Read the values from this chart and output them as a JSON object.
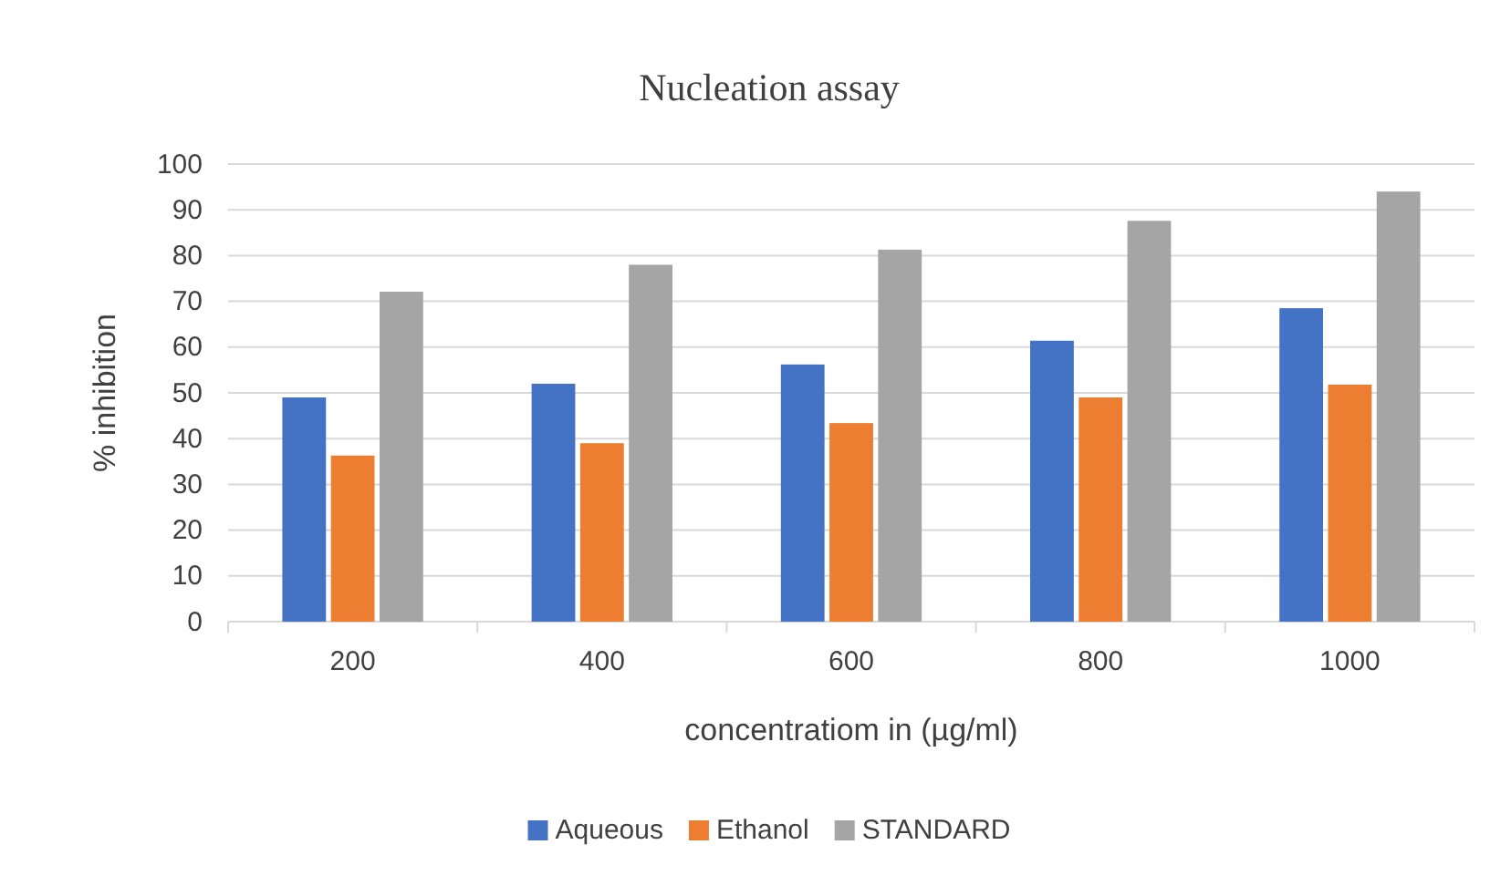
{
  "chart_data": {
    "type": "bar",
    "title": "Nucleation assay",
    "xlabel": "concentratiom in (µg/ml)",
    "ylabel": "% inhibition",
    "categories": [
      "200",
      "400",
      "600",
      "800",
      "1000"
    ],
    "series": [
      {
        "name": "Aqueous",
        "color": "#4472c4",
        "values": [
          49,
          52,
          56.2,
          61.4,
          68.5
        ]
      },
      {
        "name": "Ethanol",
        "color": "#ed7d31",
        "values": [
          36.3,
          39,
          43.4,
          49,
          51.8
        ]
      },
      {
        "name": "STANDARD",
        "color": "#a5a5a5",
        "values": [
          72.1,
          78,
          81.3,
          87.6,
          94
        ]
      }
    ],
    "ylim": [
      0,
      100
    ],
    "yticks": [
      0,
      10,
      20,
      30,
      40,
      50,
      60,
      70,
      80,
      90,
      100
    ],
    "grid": "y",
    "legend": "bottom"
  }
}
